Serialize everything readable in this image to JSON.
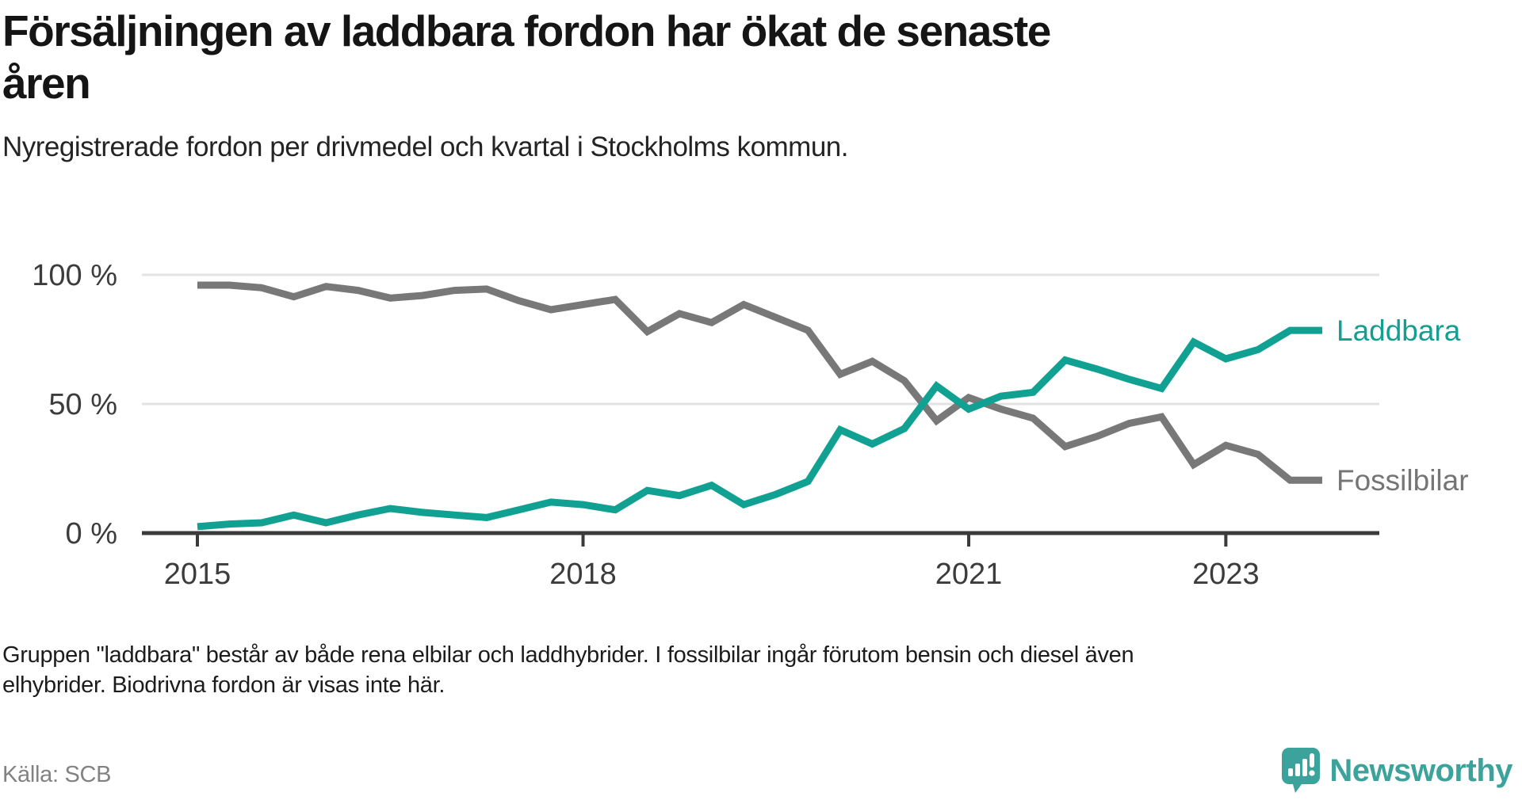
{
  "header": {
    "title": "Försäljningen av laddbara fordon har ökat de senaste åren",
    "title_lines": [
      "Försäljningen av laddbara fordon har ökat de senaste",
      "åren"
    ],
    "subtitle": "Nyregistrerade fordon per drivmedel och kvartal i Stockholms kommun."
  },
  "chart_data": {
    "type": "line",
    "title": "Nyregistrerade fordon per drivmedel och kvartal i Stockholms kommun",
    "unit": "%",
    "ylim": [
      0,
      100
    ],
    "grid": "horizontal",
    "legend_position": "end-of-line",
    "x": [
      "2015-Q1",
      "2015-Q2",
      "2015-Q3",
      "2015-Q4",
      "2016-Q1",
      "2016-Q2",
      "2016-Q3",
      "2016-Q4",
      "2017-Q1",
      "2017-Q2",
      "2017-Q3",
      "2017-Q4",
      "2018-Q1",
      "2018-Q2",
      "2018-Q3",
      "2018-Q4",
      "2019-Q1",
      "2019-Q2",
      "2019-Q3",
      "2019-Q4",
      "2020-Q1",
      "2020-Q2",
      "2020-Q3",
      "2020-Q4",
      "2021-Q1",
      "2021-Q2",
      "2021-Q3",
      "2021-Q4",
      "2022-Q1",
      "2022-Q2",
      "2022-Q3",
      "2022-Q4",
      "2023-Q1",
      "2023-Q2",
      "2023-Q3",
      "2023-Q4"
    ],
    "x_tick_labels": [
      "2015",
      "2018",
      "2021",
      "2023"
    ],
    "y_ticks": [
      {
        "label": "100 %",
        "value": 100
      },
      {
        "label": "50 %",
        "value": 50
      },
      {
        "label": "0 %",
        "value": 0
      }
    ],
    "series": [
      {
        "name": "Fossilbilar",
        "color": "#787878",
        "label_color": "#757575",
        "values": [
          96,
          96,
          95,
          91.5,
          95.5,
          94,
          91,
          92,
          94,
          94.5,
          90,
          86.5,
          88.5,
          90.5,
          78,
          85,
          81.5,
          88.5,
          83.5,
          78.5,
          61.5,
          66.5,
          59,
          43.5,
          52.5,
          48,
          44.5,
          33.5,
          37.5,
          42.5,
          45,
          26.5,
          34,
          30.5,
          20.5,
          20.5
        ]
      },
      {
        "name": "Laddbara",
        "color": "#11a192",
        "label_color": "#149e92",
        "values": [
          2.5,
          3.5,
          4,
          7,
          4,
          7,
          9.5,
          8,
          7,
          6,
          9,
          12,
          11,
          9,
          16.5,
          14.5,
          18.5,
          11,
          15,
          20,
          40,
          34.5,
          40.5,
          57,
          48,
          53,
          54.5,
          67,
          63.5,
          59.5,
          56,
          74,
          67.5,
          71,
          78.5,
          78.5
        ]
      }
    ]
  },
  "footer": {
    "note": "Gruppen \"laddbara\" består av både rena elbilar och laddhybrider. I fossilbilar ingår förutom bensin och diesel även elhybrider. Biodrivna fordon är visas inte här.",
    "note_lines": [
      "Gruppen \"laddbara\" består av både rena elbilar och laddhybrider. I fossilbilar ingår förutom bensin och diesel även",
      "elhybrider. Biodrivna fordon är visas inte här."
    ],
    "source": "Källa: SCB",
    "brand": "Newsworthy"
  },
  "colors": {
    "accent_teal": "#11a192",
    "line_gray": "#787878",
    "axis_text": "#3c3c3c",
    "gridline": "#e3e3e3",
    "axis_line": "#3a3a3a",
    "logo_teal": "#3ba39b"
  }
}
